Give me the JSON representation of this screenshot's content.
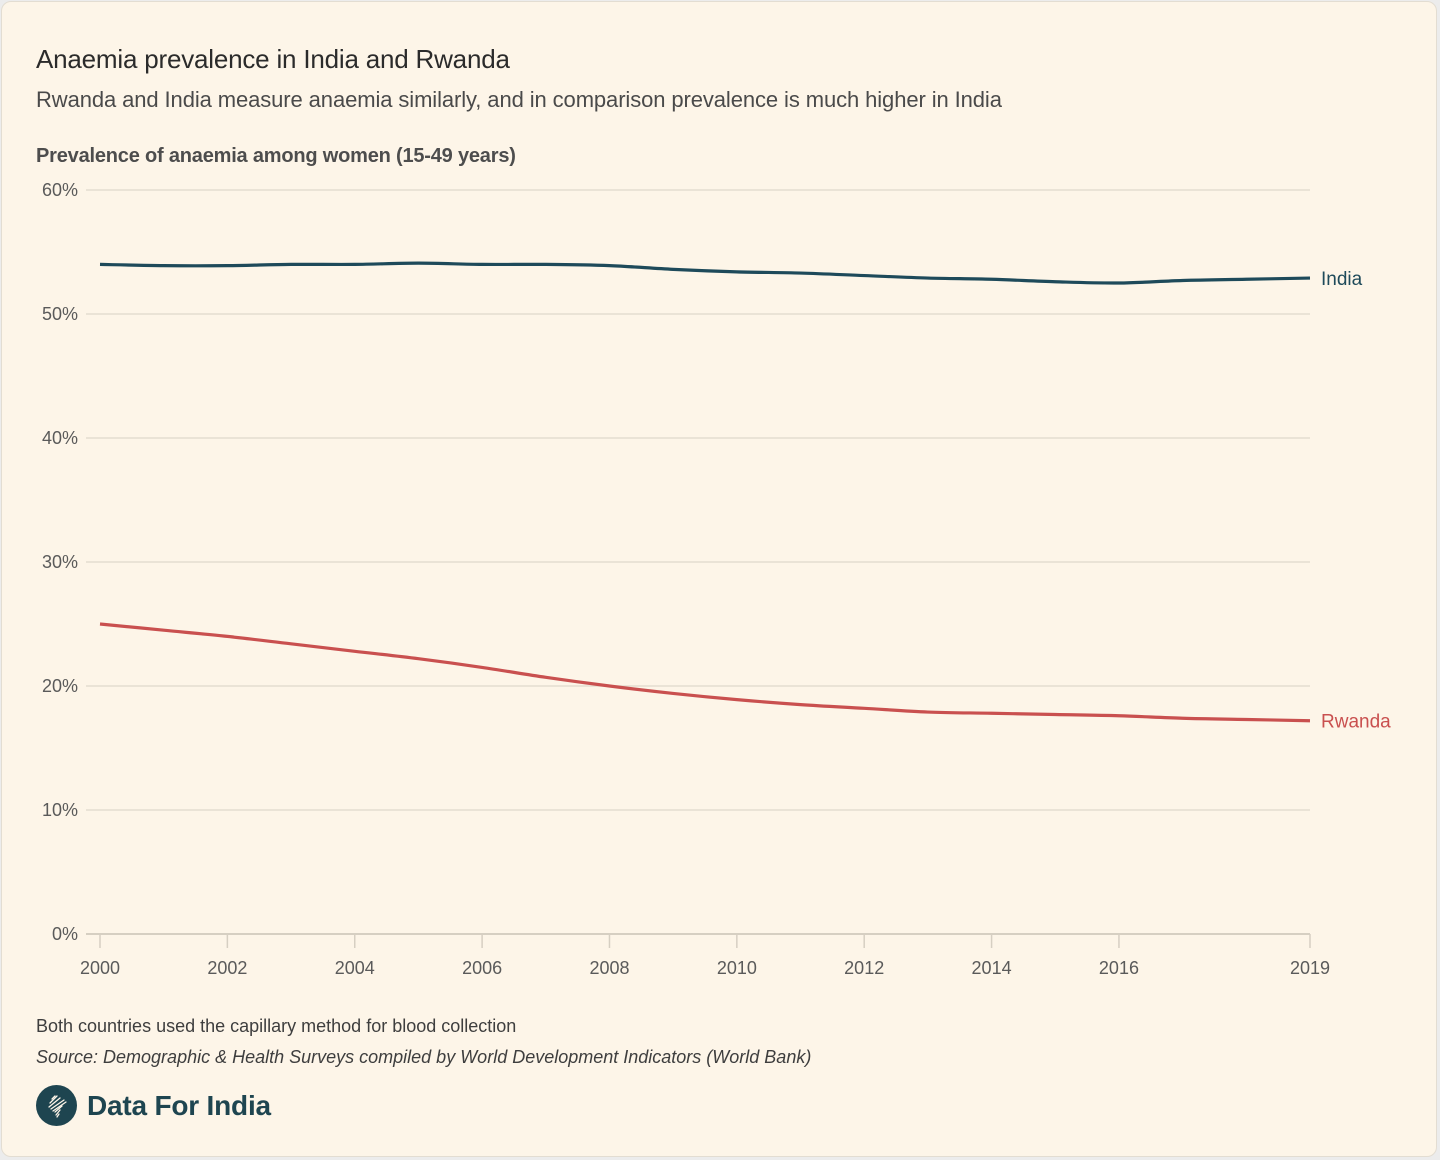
{
  "header": {
    "title": "Anaemia prevalence in India and Rwanda",
    "subtitle": "Rwanda and India measure anaemia similarly, and in comparison prevalence is much higher in India"
  },
  "footer": {
    "note": "Both countries used the capillary method for blood collection",
    "source": "Source: Demographic & Health Surveys compiled by World Development Indicators (World Bank)",
    "brand": "Data For India",
    "brand_icon": "india-map-icon"
  },
  "colors": {
    "india": "#1e4a5a",
    "rwanda": "#c9504f",
    "grid": "#e4ddcf",
    "axis_text": "#5a5a5a",
    "background": "#fdf5e8"
  },
  "chart_data": {
    "type": "line",
    "title": "Anaemia prevalence in India and Rwanda",
    "ylabel": "Prevalence of anaemia among women (15-49 years)",
    "xlabel": "",
    "ylim": [
      0,
      60
    ],
    "xlim": [
      2000,
      2019
    ],
    "grid": true,
    "legend": "inline-right",
    "y_ticks": [
      0,
      10,
      20,
      30,
      40,
      50,
      60
    ],
    "y_tick_labels": [
      "0%",
      "10%",
      "20%",
      "30%",
      "40%",
      "50%",
      "60%"
    ],
    "x_ticks": [
      2000,
      2002,
      2004,
      2006,
      2008,
      2010,
      2012,
      2014,
      2016,
      2019
    ],
    "x_tick_labels": [
      "2000",
      "2002",
      "2004",
      "2006",
      "2008",
      "2010",
      "2012",
      "2014",
      "2016",
      "2019"
    ],
    "x": [
      2000,
      2001,
      2002,
      2003,
      2004,
      2005,
      2006,
      2007,
      2008,
      2009,
      2010,
      2011,
      2012,
      2013,
      2014,
      2015,
      2016,
      2017,
      2018,
      2019
    ],
    "series": [
      {
        "name": "India",
        "color": "#1e4a5a",
        "values": [
          54.0,
          53.9,
          53.9,
          54.0,
          54.0,
          54.1,
          54.0,
          54.0,
          53.9,
          53.6,
          53.4,
          53.3,
          53.1,
          52.9,
          52.8,
          52.6,
          52.5,
          52.7,
          52.8,
          52.9
        ]
      },
      {
        "name": "Rwanda",
        "color": "#c9504f",
        "values": [
          25.0,
          24.5,
          24.0,
          23.4,
          22.8,
          22.2,
          21.5,
          20.7,
          20.0,
          19.4,
          18.9,
          18.5,
          18.2,
          17.9,
          17.8,
          17.7,
          17.6,
          17.4,
          17.3,
          17.2
        ]
      }
    ]
  }
}
